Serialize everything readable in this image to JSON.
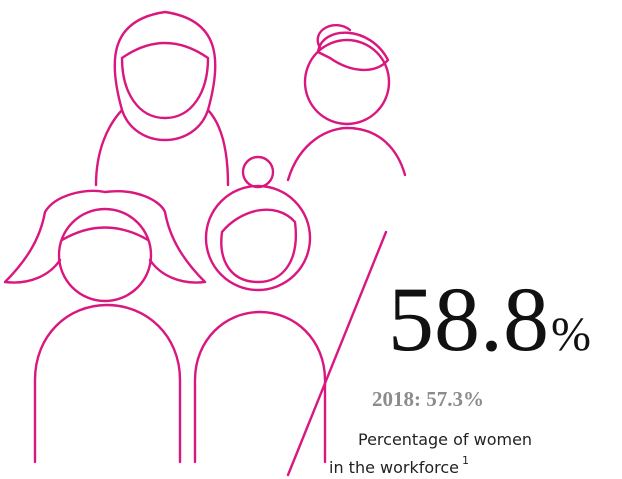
{
  "figure": {
    "value": 58.8,
    "unit": "%",
    "comparison": "2018: 57.3%",
    "caption": [
      "Percentage of women",
      "in the workforce"
    ],
    "footnote": "1"
  }
}
